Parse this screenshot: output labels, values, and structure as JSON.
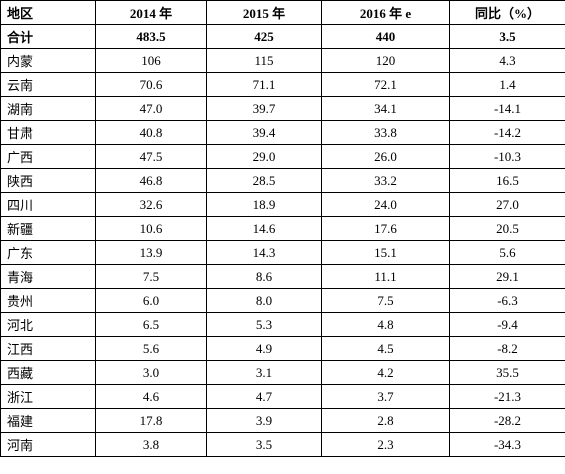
{
  "table": {
    "headers": [
      "地区",
      "2014 年",
      "2015 年",
      "2016 年 e",
      "同比（%）"
    ],
    "rows": [
      [
        "合计",
        "483.5",
        "425",
        "440",
        "3.5"
      ],
      [
        "内蒙",
        "106",
        "115",
        "120",
        "4.3"
      ],
      [
        "云南",
        "70.6",
        "71.1",
        "72.1",
        "1.4"
      ],
      [
        "湖南",
        "47.0",
        "39.7",
        "34.1",
        "-14.1"
      ],
      [
        "甘肃",
        "40.8",
        "39.4",
        "33.8",
        "-14.2"
      ],
      [
        "广西",
        "47.5",
        "29.0",
        "26.0",
        "-10.3"
      ],
      [
        "陕西",
        "46.8",
        "28.5",
        "33.2",
        "16.5"
      ],
      [
        "四川",
        "32.6",
        "18.9",
        "24.0",
        "27.0"
      ],
      [
        "新疆",
        "10.6",
        "14.6",
        "17.6",
        "20.5"
      ],
      [
        "广东",
        "13.9",
        "14.3",
        "15.1",
        "5.6"
      ],
      [
        "青海",
        "7.5",
        "8.6",
        "11.1",
        "29.1"
      ],
      [
        "贵州",
        "6.0",
        "8.0",
        "7.5",
        "-6.3"
      ],
      [
        "河北",
        "6.5",
        "5.3",
        "4.8",
        "-9.4"
      ],
      [
        "江西",
        "5.6",
        "4.9",
        "4.5",
        "-8.2"
      ],
      [
        "西藏",
        "3.0",
        "3.1",
        "4.2",
        "35.5"
      ],
      [
        "浙江",
        "4.6",
        "4.7",
        "3.7",
        "-21.3"
      ],
      [
        "福建",
        "17.8",
        "3.9",
        "2.8",
        "-28.2"
      ],
      [
        "河南",
        "3.8",
        "3.5",
        "2.3",
        "-34.3"
      ]
    ]
  }
}
